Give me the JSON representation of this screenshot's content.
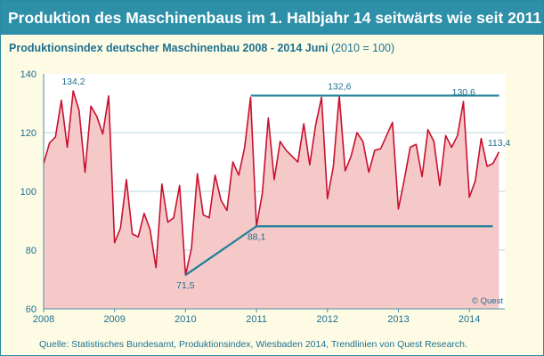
{
  "header": {
    "title": "Produktion des Maschinenbaus im  1. Halbjahr 14 seitwärts wie seit 2011"
  },
  "subtitle": {
    "main": "Produktionsindex deutscher Maschinenbau 2008  - 2014  Juni",
    "note": "(2010 = 100)"
  },
  "footer": {
    "source": "Quelle: Statistisches Bundesamt, Produktionsindex, Wiesbaden 2014, Trendlinien von Quest Research.",
    "copyright": "© Quest"
  },
  "colors": {
    "header_bg": "#2d8fa8",
    "line": "#c8102e",
    "area": "#f6c9c9",
    "trend": "#1e7f98",
    "axis_text": "#1e7090",
    "panel_bg": "#fdfbe4"
  },
  "chart_data": {
    "type": "area",
    "title": "Produktionsindex deutscher Maschinenbau 2008 - 2014 Juni",
    "xlabel": "",
    "ylabel": "",
    "xlim": [
      2008,
      2014.5
    ],
    "ylim": [
      60,
      140
    ],
    "yticks": [
      60,
      80,
      100,
      120,
      140
    ],
    "xticks": [
      2008,
      2009,
      2010,
      2011,
      2012,
      2013,
      2014
    ],
    "grid": "horizontal",
    "series": [
      {
        "name": "Produktionsindex",
        "start": 2008.0,
        "step": 0.0833333,
        "values": [
          109.5,
          116.5,
          118.5,
          131.0,
          115.0,
          134.2,
          127.5,
          106.5,
          129.0,
          125.5,
          119.5,
          132.5,
          82.5,
          87.5,
          104.0,
          85.5,
          84.5,
          92.5,
          87.0,
          74.0,
          102.5,
          89.5,
          91.0,
          102.0,
          71.5,
          80.5,
          106.0,
          92.0,
          91.0,
          105.5,
          97.0,
          93.5,
          110.0,
          105.5,
          115.0,
          132.0,
          88.1,
          99.5,
          125.0,
          104.0,
          117.0,
          114.0,
          112.0,
          110.0,
          123.0,
          109.0,
          122.5,
          132.0,
          97.5,
          108.5,
          132.6,
          107.0,
          112.0,
          120.0,
          117.0,
          106.5,
          114.0,
          114.5,
          119.0,
          123.5,
          94.0,
          104.0,
          115.0,
          116.0,
          105.0,
          121.0,
          117.0,
          102.0,
          119.0,
          115.0,
          119.0,
          130.6,
          98.0,
          103.5,
          118.0,
          108.5,
          109.5,
          113.4
        ]
      }
    ],
    "trendlines": [
      {
        "name": "upper-channel",
        "points": [
          [
            2010.92,
            132.6
          ],
          [
            2014.42,
            132.6
          ]
        ]
      },
      {
        "name": "rising-support",
        "points": [
          [
            2010.0,
            71.5
          ],
          [
            2011.0,
            88.1
          ]
        ]
      },
      {
        "name": "lower-channel",
        "points": [
          [
            2011.0,
            88.1
          ],
          [
            2014.33,
            88.1
          ]
        ]
      }
    ],
    "annotations": [
      {
        "label": "134,2",
        "x": 2008.42,
        "y": 134.2,
        "pos": "above"
      },
      {
        "label": "71,5",
        "x": 2010.0,
        "y": 71.5,
        "pos": "below"
      },
      {
        "label": "88,1",
        "x": 2011.0,
        "y": 88.1,
        "pos": "below"
      },
      {
        "label": "132,6",
        "x": 2012.17,
        "y": 132.6,
        "pos": "above"
      },
      {
        "label": "130,6",
        "x": 2013.92,
        "y": 130.6,
        "pos": "above"
      },
      {
        "label": "113,4",
        "x": 2014.42,
        "y": 113.4,
        "pos": "above"
      }
    ]
  }
}
